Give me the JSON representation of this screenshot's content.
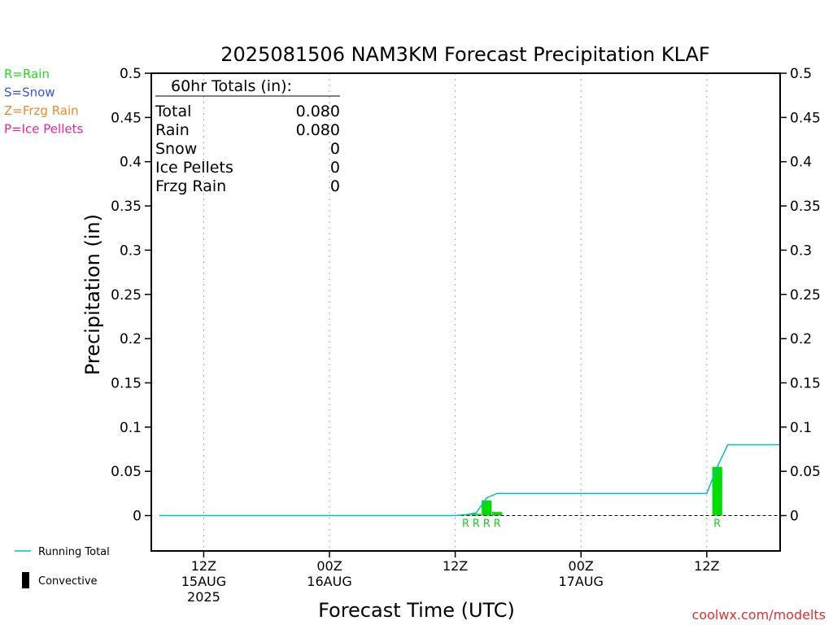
{
  "chart_data": {
    "type": "bar",
    "title": "2025081506 NAM3KM Forecast Precipitation KLAF",
    "xlabel": "Forecast Time (UTC)",
    "ylabel": "Precipitation (in)",
    "ylim": [
      -0.04,
      0.5
    ],
    "yticks": [
      "0",
      "0.05",
      "0.1",
      "0.15",
      "0.2",
      "0.25",
      "0.3",
      "0.35",
      "0.4",
      "0.45",
      "0.5"
    ],
    "ytick_values": [
      0,
      0.05,
      0.1,
      0.15,
      0.2,
      0.25,
      0.3,
      0.35,
      0.4,
      0.45,
      0.5
    ],
    "xlim": [
      7,
      67
    ],
    "xticks": [
      {
        "x": 12,
        "label": "12Z",
        "sub": "15AUG",
        "sub2": "2025"
      },
      {
        "x": 24,
        "label": "00Z",
        "sub": "16AUG",
        "sub2": ""
      },
      {
        "x": 36,
        "label": "12Z",
        "sub": "",
        "sub2": ""
      },
      {
        "x": 48,
        "label": "00Z",
        "sub": "17AUG",
        "sub2": ""
      },
      {
        "x": 60,
        "label": "12Z",
        "sub": "",
        "sub2": ""
      }
    ],
    "grid": "vertical-dotted",
    "series": [
      {
        "name": "Rain",
        "color": "#00dd00",
        "x": [
          37,
          38,
          39,
          40,
          61
        ],
        "values": [
          0.001,
          0.002,
          0.017,
          0.004,
          0.055
        ],
        "symbols": [
          "R",
          "R",
          "R",
          "R",
          "R"
        ]
      },
      {
        "name": "Running Total",
        "color": "#00c0c0",
        "x": [
          7,
          36,
          37,
          38,
          39,
          40,
          60,
          61,
          62,
          67
        ],
        "values": [
          0,
          0,
          0.001,
          0.003,
          0.02,
          0.025,
          0.025,
          0.055,
          0.08,
          0.08
        ]
      }
    ],
    "totals_box": {
      "heading": "60hr Totals (in):",
      "rows": [
        {
          "label": "Total",
          "value": "0.080"
        },
        {
          "label": "Rain",
          "value": "0.080"
        },
        {
          "label": "Snow",
          "value": "0"
        },
        {
          "label": "Ice Pellets",
          "value": "0"
        },
        {
          "label": "Frzg Rain",
          "value": "0"
        }
      ]
    },
    "type_legend": [
      {
        "text": "R=Rain",
        "color": "#22dd22"
      },
      {
        "text": "S=Snow",
        "color": "#3355ee"
      },
      {
        "text": "Z=Frzg Rain",
        "color": "#ee8833"
      },
      {
        "text": "P=Ice Pellets",
        "color": "#ee2299"
      }
    ],
    "bottom_legend": {
      "running_total": "Running Total",
      "convective": "Convective"
    },
    "credit": "coolwx.com/modelts",
    "credit_color": "#e03030"
  }
}
